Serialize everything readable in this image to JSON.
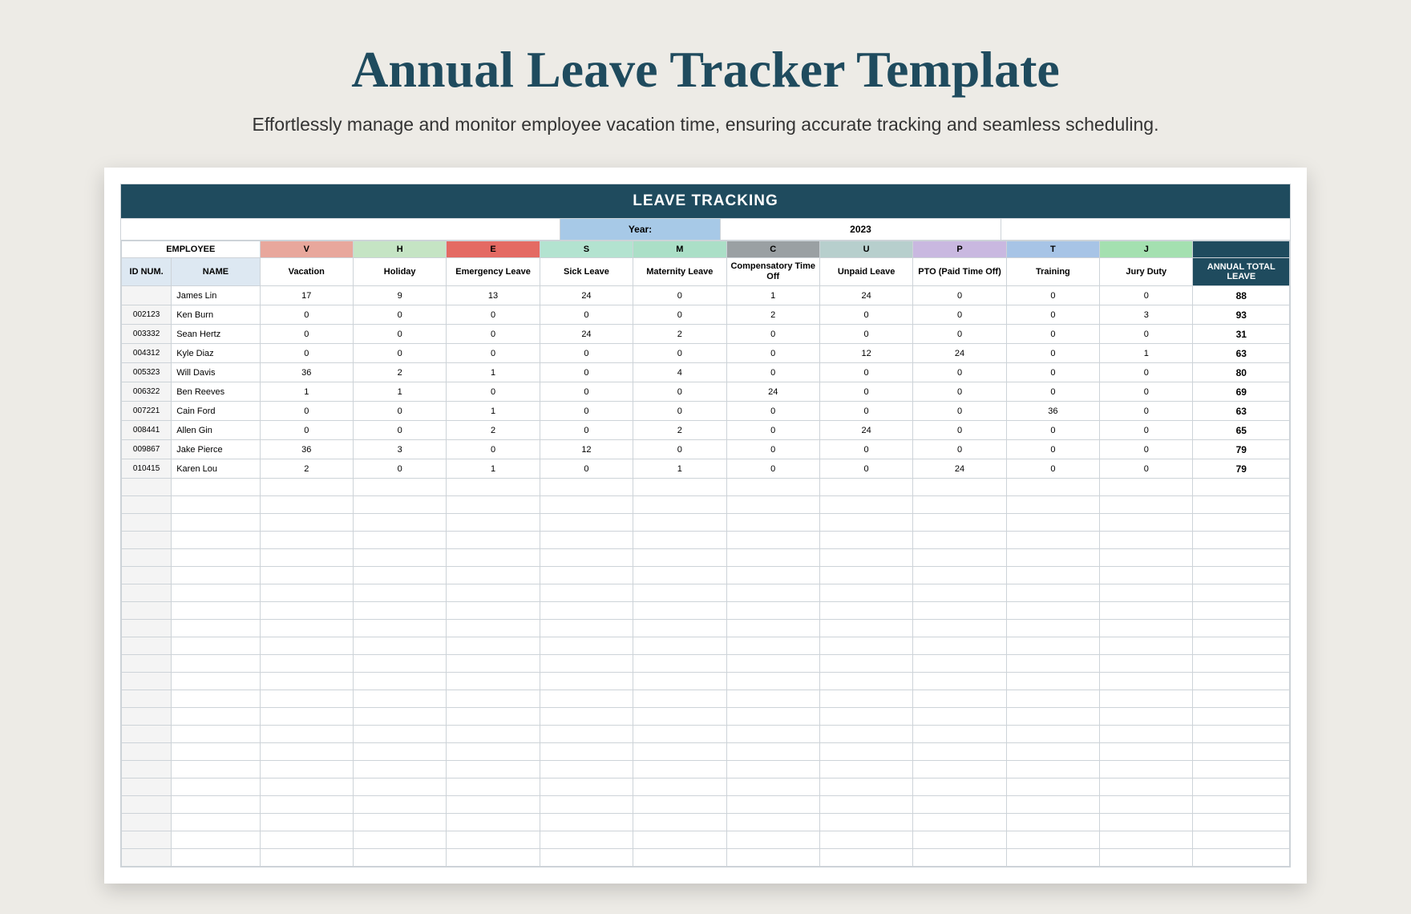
{
  "title": "Annual Leave Tracker Template",
  "subtitle": "Effortlessly manage and monitor employee vacation time, ensuring accurate tracking and seamless scheduling.",
  "banner": "LEAVE TRACKING",
  "year_label": "Year:",
  "year_value": "2023",
  "employee_header": "EMPLOYEE",
  "id_header": "ID NUM.",
  "name_header": "NAME",
  "total_header": "ANNUAL TOTAL LEAVE",
  "colors": {
    "page_bg": "#edebe6",
    "title": "#1f4b5e",
    "banner_bg": "#1f4b5e",
    "banner_fg": "#ffffff",
    "year_label_bg": "#a7c9e7",
    "id_hdr_bg": "#dde8f2",
    "total_hdr_bg": "#1f4b5e",
    "border": "#cdd3d8",
    "id_col_bg": "#f4f4f4"
  },
  "leave_types": [
    {
      "code": "V",
      "label": "Vacation",
      "color": "#e8a79c"
    },
    {
      "code": "H",
      "label": "Holiday",
      "color": "#c5e4c4"
    },
    {
      "code": "E",
      "label": "Emergency Leave",
      "color": "#e46a63"
    },
    {
      "code": "S",
      "label": "Sick Leave",
      "color": "#b3e3d0"
    },
    {
      "code": "M",
      "label": "Maternity Leave",
      "color": "#abdfc7"
    },
    {
      "code": "C",
      "label": "Compensatory Time Off",
      "color": "#9aa0a3"
    },
    {
      "code": "U",
      "label": "Unpaid Leave",
      "color": "#b7cfcd"
    },
    {
      "code": "P",
      "label": "PTO (Paid Time Off)",
      "color": "#c9b8e0"
    },
    {
      "code": "T",
      "label": "Training",
      "color": "#a7c4e6"
    },
    {
      "code": "J",
      "label": "Jury Duty",
      "color": "#a4e0b0"
    }
  ],
  "employees": [
    {
      "id": "",
      "name": "James Lin",
      "v": [
        17,
        9,
        13,
        24,
        0,
        1,
        24,
        0,
        0,
        0
      ],
      "total": 88
    },
    {
      "id": "002123",
      "name": "Ken Burn",
      "v": [
        0,
        0,
        0,
        0,
        0,
        2,
        0,
        0,
        0,
        3
      ],
      "total": 93
    },
    {
      "id": "003332",
      "name": "Sean Hertz",
      "v": [
        0,
        0,
        0,
        24,
        2,
        0,
        0,
        0,
        0,
        0
      ],
      "total": 31
    },
    {
      "id": "004312",
      "name": "Kyle Diaz",
      "v": [
        0,
        0,
        0,
        0,
        0,
        0,
        12,
        24,
        0,
        1
      ],
      "total": 63
    },
    {
      "id": "005323",
      "name": "Will Davis",
      "v": [
        36,
        2,
        1,
        0,
        4,
        0,
        0,
        0,
        0,
        0
      ],
      "total": 80
    },
    {
      "id": "006322",
      "name": "Ben Reeves",
      "v": [
        1,
        1,
        0,
        0,
        0,
        24,
        0,
        0,
        0,
        0
      ],
      "total": 69
    },
    {
      "id": "007221",
      "name": "Cain Ford",
      "v": [
        0,
        0,
        1,
        0,
        0,
        0,
        0,
        0,
        36,
        0
      ],
      "total": 63
    },
    {
      "id": "008441",
      "name": "Allen Gin",
      "v": [
        0,
        0,
        2,
        0,
        2,
        0,
        24,
        0,
        0,
        0
      ],
      "total": 65
    },
    {
      "id": "009867",
      "name": "Jake Pierce",
      "v": [
        36,
        3,
        0,
        12,
        0,
        0,
        0,
        0,
        0,
        0
      ],
      "total": 79
    },
    {
      "id": "010415",
      "name": "Karen Lou",
      "v": [
        2,
        0,
        1,
        0,
        1,
        0,
        0,
        24,
        0,
        0
      ],
      "total": 79
    }
  ],
  "empty_rows": 22
}
